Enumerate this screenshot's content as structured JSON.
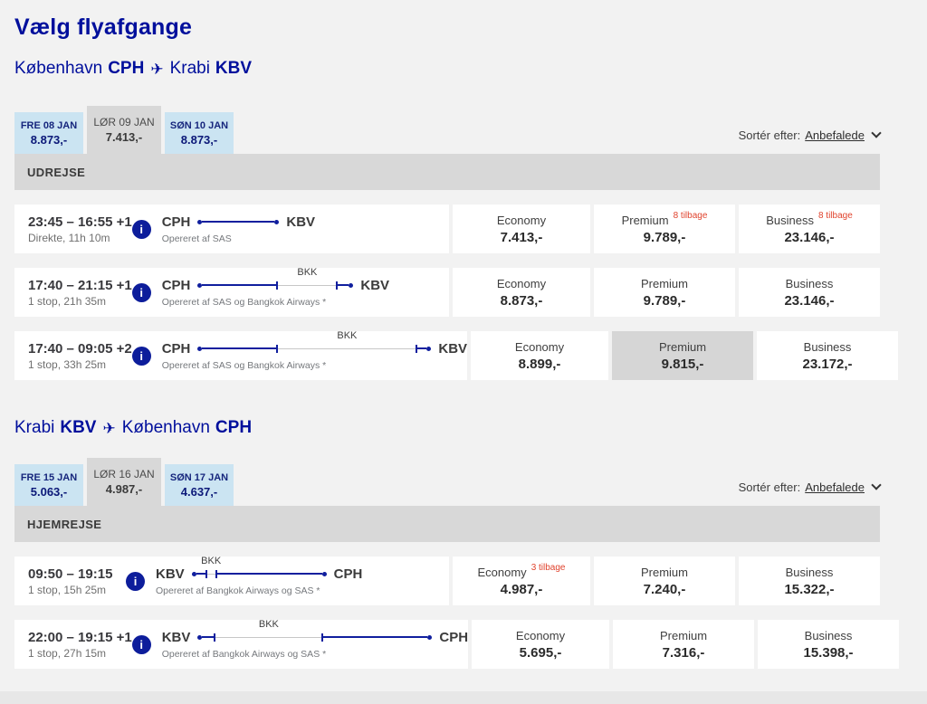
{
  "page": {
    "title": "Vælg flyafgange"
  },
  "sort": {
    "label": "Sortér efter:",
    "value": "Anbefalede"
  },
  "icons": {
    "plane_glyph": "✈",
    "info_glyph": "i",
    "chevron": "chevron-down"
  },
  "colors": {
    "brand_blue": "#000f9c",
    "tab_blue": "#cbe4f2",
    "selected_gray": "#d6d6d6",
    "badge_red": "#e0432d",
    "route_blue": "#101f9e"
  },
  "sections": [
    {
      "route": {
        "from_city": "København",
        "from_code": "CPH",
        "to_city": "Krabi",
        "to_code": "KBV"
      },
      "band_label": "UDREJSE",
      "tabs": [
        {
          "date": "FRE 08 JAN",
          "price": "8.873,-",
          "selected": false
        },
        {
          "date": "LØR 09 JAN",
          "price": "7.413,-",
          "selected": true
        },
        {
          "date": "SØN 10 JAN",
          "price": "8.873,-",
          "selected": false
        }
      ],
      "flights": [
        {
          "times": "23:45 – 16:55 +1",
          "details": "Direkte, 11h 10m",
          "origin": "CPH",
          "dest": "KBV",
          "via": null,
          "operated_by": "Opereret af SAS",
          "segments": [
            {
              "t": "flight",
              "w": 80
            }
          ],
          "fares": [
            {
              "cabin": "Economy",
              "price": "7.413,-"
            },
            {
              "cabin": "Premium",
              "price": "9.789,-",
              "badge": "8 tilbage"
            },
            {
              "cabin": "Business",
              "price": "23.146,-",
              "badge": "8 tilbage"
            }
          ]
        },
        {
          "times": "17:40 – 21:15 +1",
          "details": "1 stop, 21h 35m",
          "origin": "CPH",
          "dest": "KBV",
          "via": "BKK",
          "operated_by": "Opereret af SAS og Bangkok Airways *",
          "segments": [
            {
              "t": "flight",
              "w": 82
            },
            {
              "t": "layover",
              "w": 64
            },
            {
              "t": "flight",
              "w": 12
            }
          ],
          "fares": [
            {
              "cabin": "Economy",
              "price": "8.873,-"
            },
            {
              "cabin": "Premium",
              "price": "9.789,-"
            },
            {
              "cabin": "Business",
              "price": "23.146,-"
            }
          ]
        },
        {
          "times": "17:40 – 09:05 +2",
          "details": "1 stop, 33h 25m",
          "origin": "CPH",
          "dest": "KBV",
          "via": "BKK",
          "operated_by": "Opereret af SAS og Bangkok Airways *",
          "segments": [
            {
              "t": "flight",
              "w": 82
            },
            {
              "t": "layover",
              "w": 152
            },
            {
              "t": "flight",
              "w": 10
            }
          ],
          "fares": [
            {
              "cabin": "Economy",
              "price": "8.899,-"
            },
            {
              "cabin": "Premium",
              "price": "9.815,-",
              "selected": true
            },
            {
              "cabin": "Business",
              "price": "23.172,-"
            }
          ]
        }
      ]
    },
    {
      "route": {
        "from_city": "Krabi",
        "from_code": "KBV",
        "to_city": "København",
        "to_code": "CPH"
      },
      "band_label": "HJEMREJSE",
      "tabs": [
        {
          "date": "FRE 15 JAN",
          "price": "5.063,-",
          "selected": false
        },
        {
          "date": "LØR 16 JAN",
          "price": "4.987,-",
          "selected": true
        },
        {
          "date": "SØN 17 JAN",
          "price": "4.637,-",
          "selected": false
        }
      ],
      "flights": [
        {
          "times": "09:50 – 19:15",
          "details": "1 stop, 15h 25m",
          "origin": "KBV",
          "dest": "CPH",
          "via": "BKK",
          "operated_by": "Opereret af Bangkok Airways og SAS *",
          "segments": [
            {
              "t": "flight",
              "w": 10
            },
            {
              "t": "layover",
              "w": 9
            },
            {
              "t": "flight",
              "w": 116
            }
          ],
          "fares": [
            {
              "cabin": "Economy",
              "price": "4.987,-",
              "badge": "3 tilbage"
            },
            {
              "cabin": "Premium",
              "price": "7.240,-"
            },
            {
              "cabin": "Business",
              "price": "15.322,-"
            }
          ]
        },
        {
          "times": "22:00 – 19:15 +1",
          "details": "1 stop, 27h 15m",
          "origin": "KBV",
          "dest": "CPH",
          "via": "BKK",
          "operated_by": "Opereret af Bangkok Airways og SAS *",
          "segments": [
            {
              "t": "flight",
              "w": 13
            },
            {
              "t": "layover",
              "w": 117
            },
            {
              "t": "flight",
              "w": 115
            }
          ],
          "fares": [
            {
              "cabin": "Economy",
              "price": "5.695,-"
            },
            {
              "cabin": "Premium",
              "price": "7.316,-"
            },
            {
              "cabin": "Business",
              "price": "15.398,-"
            }
          ]
        }
      ]
    }
  ]
}
